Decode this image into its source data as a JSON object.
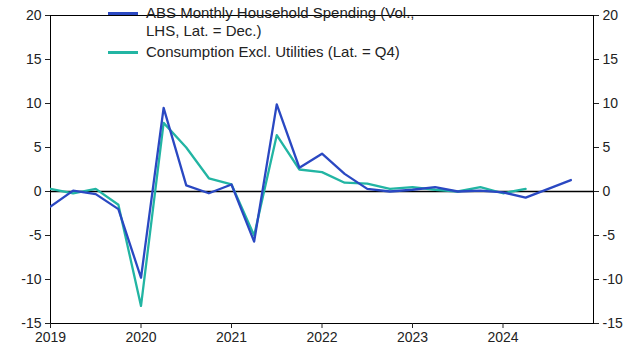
{
  "chart_data": {
    "type": "line",
    "x": [
      2019,
      2019.25,
      2019.5,
      2019.75,
      2020,
      2020.25,
      2020.5,
      2020.75,
      2021,
      2021.25,
      2021.5,
      2021.75,
      2022,
      2022.25,
      2022.5,
      2022.75,
      2023,
      2023.25,
      2023.5,
      2023.75,
      2024,
      2024.25,
      2024.5,
      2024.75
    ],
    "series": [
      {
        "name": "ABS Monthly Household Spending (Vol., LHS, Lat. = Dec.)",
        "color": "#2a48c2",
        "values": [
          -1.7,
          0.1,
          -0.3,
          -2.0,
          -9.8,
          9.5,
          0.7,
          -0.2,
          0.8,
          -5.7,
          9.9,
          2.7,
          4.3,
          2.0,
          0.3,
          0.0,
          0.2,
          0.5,
          0.0,
          0.1,
          -0.1,
          -0.7,
          0.3,
          1.3
        ]
      },
      {
        "name": "Consumption Excl. Utilities (Lat. = Q4)",
        "color": "#22b5a3",
        "values": [
          0.3,
          -0.2,
          0.3,
          -1.5,
          -13.0,
          7.8,
          5.0,
          1.5,
          0.8,
          -5.0,
          6.4,
          2.5,
          2.2,
          1.0,
          0.9,
          0.3,
          0.5,
          0.2,
          0.0,
          0.5,
          -0.2,
          0.3,
          null,
          null
        ]
      }
    ],
    "xlim": [
      2019,
      2025
    ],
    "xticks": [
      2019,
      2020,
      2021,
      2022,
      2023,
      2024
    ],
    "ylim": [
      -15,
      20
    ],
    "yticks": [
      -15,
      -10,
      -5,
      0,
      5,
      10,
      15,
      20
    ],
    "y2lim": [
      -15,
      20
    ],
    "y2ticks": [
      -15,
      -10,
      -5,
      0,
      5,
      10,
      15,
      20
    ],
    "grid": false,
    "legend": "top-left"
  }
}
